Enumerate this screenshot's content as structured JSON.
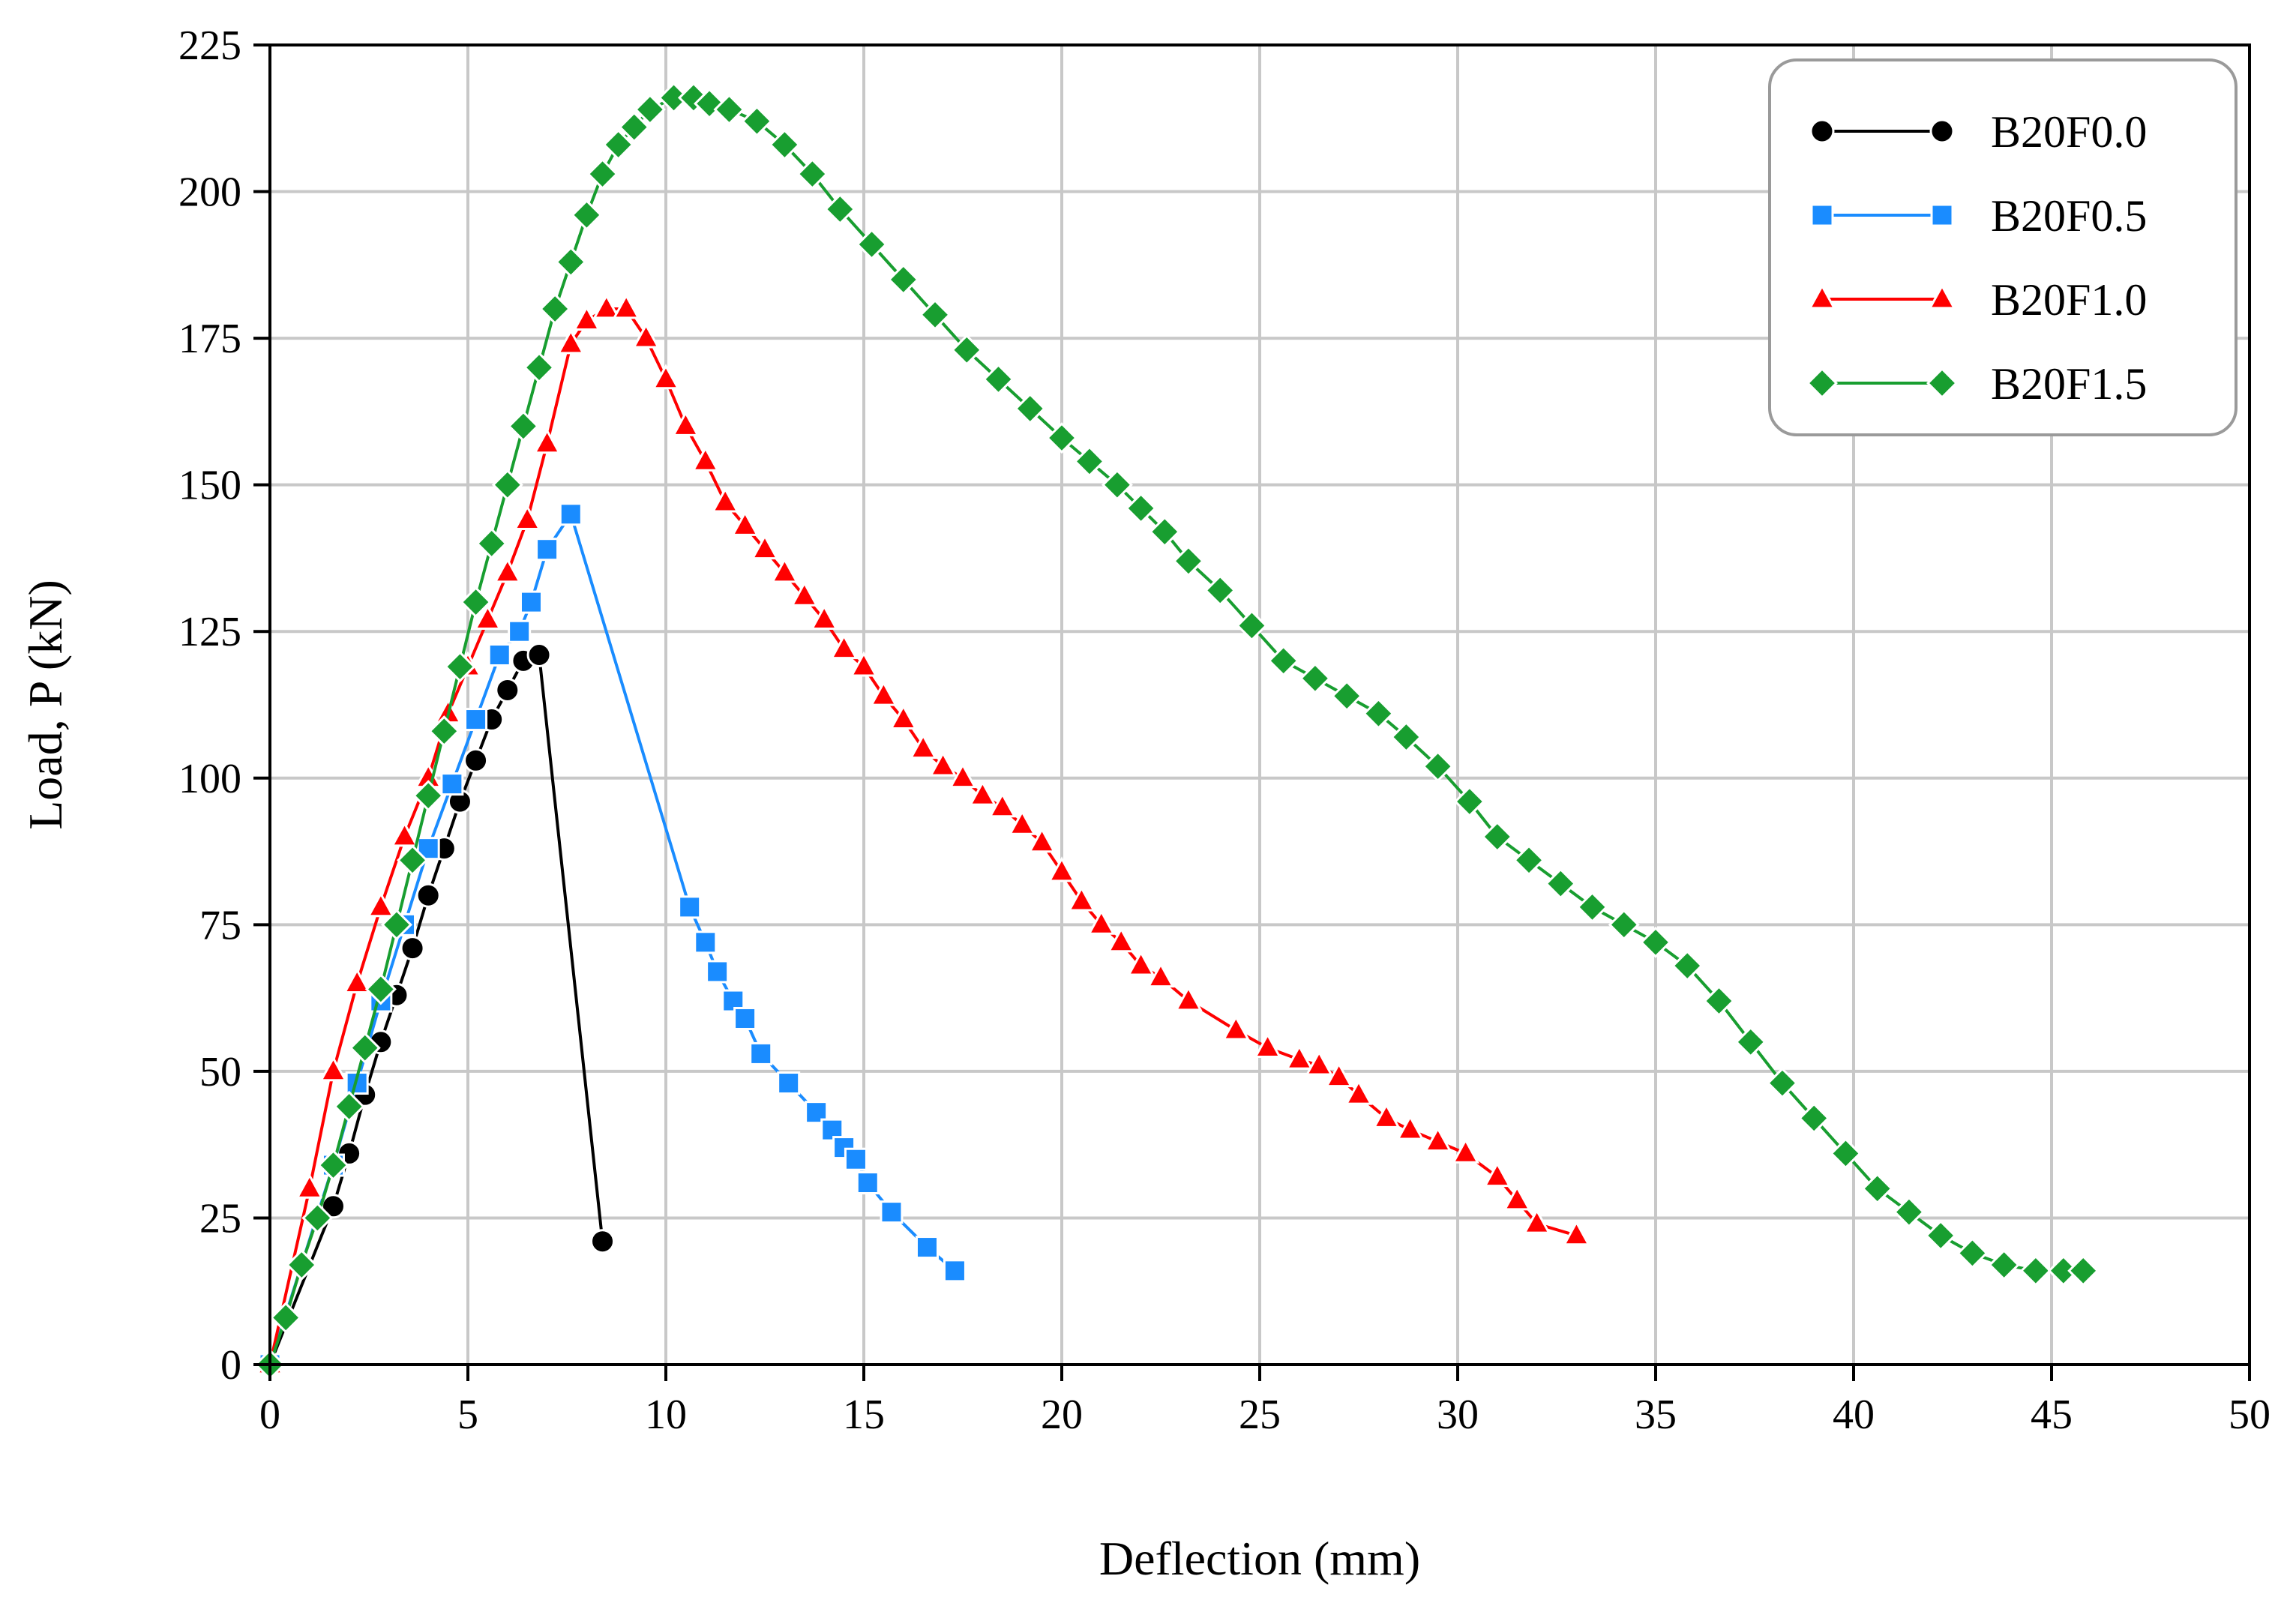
{
  "chart_data": {
    "type": "line",
    "title": "",
    "xlabel": "Deflection (mm)",
    "ylabel": "Load, P (kN)",
    "xlim": [
      0,
      50
    ],
    "ylim": [
      0,
      225
    ],
    "xticks": [
      0,
      5,
      10,
      15,
      20,
      25,
      30,
      35,
      40,
      45,
      50
    ],
    "yticks": [
      0,
      25,
      50,
      75,
      100,
      125,
      150,
      175,
      200,
      225
    ],
    "grid": true,
    "legend_position": "top-right",
    "series": [
      {
        "name": "B20F0.0",
        "color": "#000000",
        "marker": "circle",
        "x": [
          0,
          1.6,
          2.0,
          2.4,
          2.8,
          3.2,
          3.6,
          4.0,
          4.4,
          4.8,
          5.2,
          5.6,
          6.0,
          6.4,
          6.8,
          8.4
        ],
        "y": [
          0,
          27,
          36,
          46,
          55,
          63,
          71,
          80,
          88,
          96,
          103,
          110,
          115,
          120,
          121,
          21
        ]
      },
      {
        "name": "B20F0.5",
        "color": "#1a8cff",
        "marker": "square",
        "x": [
          0,
          1.6,
          2.2,
          2.8,
          3.4,
          4.0,
          4.6,
          5.2,
          5.8,
          6.3,
          6.6,
          7.0,
          7.6,
          10.6,
          11.0,
          11.3,
          11.7,
          12.0,
          12.4,
          13.1,
          13.8,
          14.2,
          14.5,
          14.8,
          15.1,
          15.7,
          16.6,
          17.3
        ],
        "y": [
          0,
          34,
          48,
          62,
          75,
          88,
          99,
          110,
          121,
          125,
          130,
          139,
          145,
          78,
          72,
          67,
          62,
          59,
          53,
          48,
          43,
          40,
          37,
          35,
          31,
          26,
          20,
          16
        ]
      },
      {
        "name": "B20F1.0",
        "color": "#ff0000",
        "marker": "triangle",
        "x": [
          0,
          1.0,
          1.6,
          2.2,
          2.8,
          3.4,
          4.0,
          4.5,
          5.0,
          5.5,
          6.0,
          6.5,
          7.0,
          7.6,
          8.0,
          8.5,
          9.0,
          9.5,
          10.0,
          10.5,
          11.0,
          11.5,
          12.0,
          12.5,
          13.0,
          13.5,
          14.0,
          14.5,
          15.0,
          15.5,
          16.0,
          16.5,
          17.0,
          17.5,
          18.0,
          18.5,
          19.0,
          19.5,
          20.0,
          20.5,
          21.0,
          21.5,
          22.0,
          22.5,
          23.2,
          24.4,
          25.2,
          26.0,
          26.5,
          27.0,
          27.5,
          28.2,
          28.8,
          29.5,
          30.2,
          31.0,
          31.5,
          32.0,
          33.0
        ],
        "y": [
          0,
          30,
          50,
          65,
          78,
          90,
          100,
          111,
          119,
          127,
          135,
          144,
          157,
          174,
          178,
          180,
          180,
          175,
          168,
          160,
          154,
          147,
          143,
          139,
          135,
          131,
          127,
          122,
          119,
          114,
          110,
          105,
          102,
          100,
          97,
          95,
          92,
          89,
          84,
          79,
          75,
          72,
          68,
          66,
          62,
          57,
          54,
          52,
          51,
          49,
          46,
          42,
          40,
          38,
          36,
          32,
          28,
          24,
          22
        ]
      },
      {
        "name": "B20F1.5",
        "color": "#189e30",
        "marker": "diamond",
        "x": [
          0,
          0.4,
          0.8,
          1.2,
          1.6,
          2.0,
          2.4,
          2.8,
          3.2,
          3.6,
          4.0,
          4.4,
          4.8,
          5.2,
          5.6,
          6.0,
          6.4,
          6.8,
          7.2,
          7.6,
          8.0,
          8.4,
          8.8,
          9.2,
          9.6,
          10.2,
          10.7,
          11.1,
          11.6,
          12.3,
          13.0,
          13.7,
          14.4,
          15.2,
          16.0,
          16.8,
          17.6,
          18.4,
          19.2,
          20.0,
          20.7,
          21.4,
          22.0,
          22.6,
          23.2,
          24.0,
          24.8,
          25.6,
          26.4,
          27.2,
          28.0,
          28.7,
          29.5,
          30.3,
          31.0,
          31.8,
          32.6,
          33.4,
          34.2,
          35.0,
          35.8,
          36.6,
          37.4,
          38.2,
          39.0,
          39.8,
          40.6,
          41.4,
          42.2,
          43.0,
          43.8,
          44.6,
          45.3,
          45.8
        ],
        "y": [
          0,
          8,
          17,
          25,
          34,
          44,
          54,
          64,
          75,
          86,
          97,
          108,
          119,
          130,
          140,
          150,
          160,
          170,
          180,
          188,
          196,
          203,
          208,
          211,
          214,
          216,
          216,
          215,
          214,
          212,
          208,
          203,
          197,
          191,
          185,
          179,
          173,
          168,
          163,
          158,
          154,
          150,
          146,
          142,
          137,
          132,
          126,
          120,
          117,
          114,
          111,
          107,
          102,
          96,
          90,
          86,
          82,
          78,
          75,
          72,
          68,
          62,
          55,
          48,
          42,
          36,
          30,
          26,
          22,
          19,
          17,
          16,
          16,
          16
        ]
      }
    ]
  }
}
